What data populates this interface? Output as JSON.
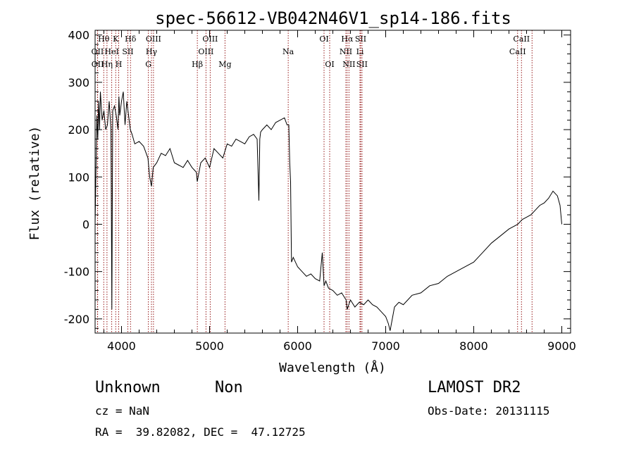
{
  "chart_data": {
    "type": "line",
    "title": "spec-56612-VB042N46V1_sp14-186.fits",
    "xlabel": "Wavelength (Å)",
    "ylabel": "Flux (relative)",
    "xlim": [
      3700,
      9100
    ],
    "ylim": [
      -230,
      410
    ],
    "xticks": [
      4000,
      5000,
      6000,
      7000,
      8000,
      9000
    ],
    "yticks": [
      -200,
      -100,
      0,
      100,
      200,
      300,
      400
    ],
    "grid": false,
    "series": [
      {
        "x": [
          3700,
          3710,
          3720,
          3730,
          3740,
          3750,
          3760,
          3780,
          3800,
          3820,
          3840,
          3860,
          3880,
          3890,
          3900,
          3920,
          3940,
          3960,
          3970,
          3980,
          4000,
          4020,
          4040,
          4060,
          4080,
          4100,
          4120,
          4150,
          4200,
          4250,
          4300,
          4320,
          4340,
          4360,
          4400,
          4450,
          4500,
          4550,
          4600,
          4650,
          4700,
          4750,
          4800,
          4850,
          4860,
          4900,
          4950,
          5000,
          5050,
          5100,
          5150,
          5200,
          5250,
          5300,
          5350,
          5400,
          5450,
          5500,
          5540,
          5560,
          5570,
          5580,
          5600,
          5650,
          5700,
          5750,
          5800,
          5850,
          5880,
          5900,
          5910,
          5920,
          5930,
          5950,
          6000,
          6050,
          6100,
          6150,
          6200,
          6250,
          6280,
          6300,
          6320,
          6350,
          6400,
          6450,
          6500,
          6550,
          6562,
          6600,
          6650,
          6700,
          6750,
          6800,
          6850,
          6900,
          6950,
          7000,
          7030,
          7050,
          7100,
          7150,
          7200,
          7250,
          7300,
          7400,
          7500,
          7600,
          7700,
          7800,
          7900,
          8000,
          8100,
          8200,
          8300,
          8400,
          8500,
          8550,
          8600,
          8650,
          8700,
          8750,
          8800,
          8850,
          8900,
          8950,
          8980,
          9000
        ],
        "y": [
          0,
          120,
          230,
          180,
          260,
          200,
          280,
          220,
          240,
          200,
          210,
          260,
          200,
          -180,
          240,
          250,
          230,
          200,
          270,
          230,
          260,
          280,
          210,
          260,
          230,
          200,
          190,
          170,
          175,
          165,
          140,
          100,
          80,
          120,
          130,
          150,
          145,
          160,
          130,
          125,
          120,
          135,
          120,
          110,
          90,
          130,
          140,
          120,
          160,
          150,
          140,
          170,
          165,
          180,
          175,
          170,
          185,
          190,
          180,
          50,
          180,
          195,
          200,
          210,
          200,
          215,
          220,
          225,
          210,
          210,
          130,
          90,
          -80,
          -70,
          -90,
          -100,
          -110,
          -105,
          -115,
          -120,
          -60,
          -130,
          -120,
          -135,
          -140,
          -150,
          -145,
          -160,
          -180,
          -160,
          -175,
          -165,
          -170,
          -160,
          -170,
          -175,
          -185,
          -195,
          -210,
          -225,
          -175,
          -165,
          -170,
          -160,
          -150,
          -145,
          -130,
          -125,
          -110,
          -100,
          -90,
          -80,
          -60,
          -40,
          -25,
          -10,
          0,
          10,
          15,
          20,
          30,
          40,
          45,
          55,
          70,
          60,
          40,
          0
        ]
      }
    ],
    "lines": [
      {
        "label": "Hθ",
        "wavelength": 3798
      },
      {
        "label": "K",
        "wavelength": 3934
      },
      {
        "label": "Hδ",
        "wavelength": 4102
      },
      {
        "label": "OIII",
        "wavelength": 4363
      },
      {
        "label": "OIII",
        "wavelength": 5007
      },
      {
        "label": "OI",
        "wavelength": 6300
      },
      {
        "label": "Hα",
        "wavelength": 6563
      },
      {
        "label": "SII",
        "wavelength": 6716
      },
      {
        "label": "CaII",
        "wavelength": 8542
      },
      {
        "label": "OII",
        "wavelength": 3727
      },
      {
        "label": "HeI",
        "wavelength": 3889
      },
      {
        "label": "SII",
        "wavelength": 4072
      },
      {
        "label": "Hγ",
        "wavelength": 4340
      },
      {
        "label": "OIII",
        "wavelength": 4959
      },
      {
        "label": "Na",
        "wavelength": 5893
      },
      {
        "label": "NII",
        "wavelength": 6548
      },
      {
        "label": "Li",
        "wavelength": 6708
      },
      {
        "label": "CaII",
        "wavelength": 8498
      },
      {
        "label": "OII",
        "wavelength": 3729
      },
      {
        "label": "Hη",
        "wavelength": 3835
      },
      {
        "label": "H",
        "wavelength": 3968
      },
      {
        "label": "G",
        "wavelength": 4305
      },
      {
        "label": "Hβ",
        "wavelength": 4861
      },
      {
        "label": "Mg",
        "wavelength": 5175
      },
      {
        "label": "OI",
        "wavelength": 6364
      },
      {
        "label": "NII",
        "wavelength": 6583
      },
      {
        "label": "SII",
        "wavelength": 6731
      },
      {
        "label": "CaII",
        "wavelength": 8662
      }
    ]
  },
  "footer": {
    "object_class": "Unknown",
    "subclass": "Non",
    "survey": "LAMOST DR2",
    "redshift": "cz = NaN",
    "obs_date": "Obs-Date: 20131115",
    "coordinates": "RA =  39.82082, DEC =  47.12725"
  }
}
